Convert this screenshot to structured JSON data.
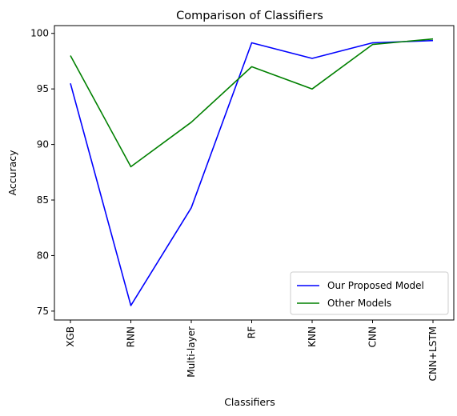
{
  "chart_data": {
    "type": "line",
    "title": "Comparison of Classifiers",
    "xlabel": "Classifiers",
    "ylabel": "Accuracy",
    "categories": [
      "XGB",
      "RNN",
      "Multi-layer",
      "RF",
      "KNN",
      "CNN",
      "CNN+LSTM"
    ],
    "ylim": [
      74.2,
      100.7
    ],
    "yticks": [
      75,
      80,
      85,
      90,
      95,
      100
    ],
    "grid": false,
    "legend_position": "lower-right",
    "series": [
      {
        "name": "Our Proposed Model",
        "color": "#0000ff",
        "values": [
          95.5,
          75.5,
          84.3,
          99.15,
          97.75,
          99.15,
          99.35
        ]
      },
      {
        "name": "Other Models",
        "color": "#008000",
        "values": [
          98.0,
          88.0,
          92.0,
          97.0,
          95.0,
          99.0,
          99.5
        ]
      }
    ]
  }
}
